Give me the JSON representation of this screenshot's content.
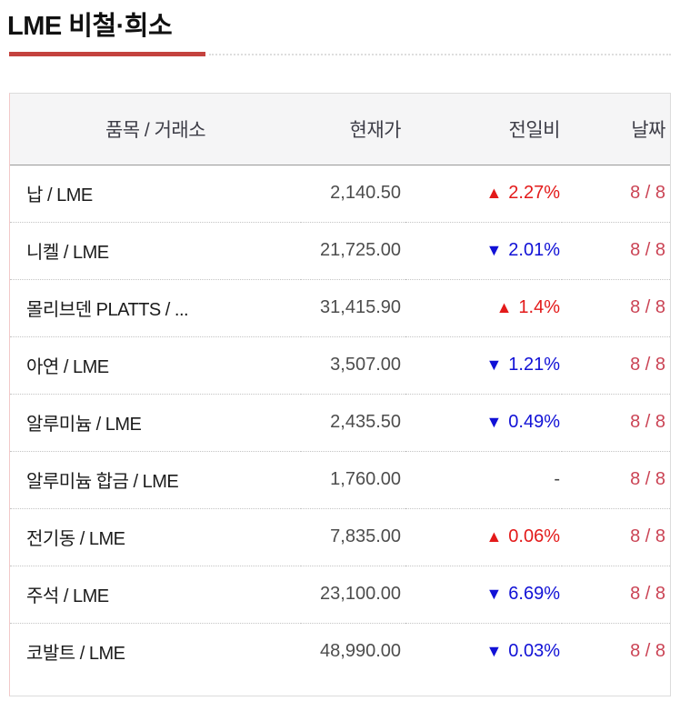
{
  "page": {
    "title": "LME 비철·희소"
  },
  "icons": {
    "up": "▲",
    "down": "▼"
  },
  "colors": {
    "title_underline": "#c4423e",
    "up_red": "#e31a1a",
    "down_blue": "#1111d6",
    "date_red": "#cb4455",
    "header_bg": "#f5f5f6",
    "header_text": "#3d3d47",
    "price_text": "#4d4d4d"
  },
  "table": {
    "columns": [
      {
        "key": "name",
        "label": "품목 / 거래소"
      },
      {
        "key": "price",
        "label": "현재가"
      },
      {
        "key": "change",
        "label": "전일비"
      },
      {
        "key": "date",
        "label": "날짜"
      }
    ],
    "rows": [
      {
        "name": "납 / LME",
        "price": "2,140.50",
        "direction": "up",
        "change": "2.27%",
        "date": "8 / 8"
      },
      {
        "name": "니켈 / LME",
        "price": "21,725.00",
        "direction": "down",
        "change": "2.01%",
        "date": "8 / 8"
      },
      {
        "name": "몰리브덴 PLATTS / ...",
        "price": "31,415.90",
        "direction": "up",
        "change": "1.4%",
        "date": "8 / 8"
      },
      {
        "name": "아연 / LME",
        "price": "3,507.00",
        "direction": "down",
        "change": "1.21%",
        "date": "8 / 8"
      },
      {
        "name": "알루미늄 / LME",
        "price": "2,435.50",
        "direction": "down",
        "change": "0.49%",
        "date": "8 / 8"
      },
      {
        "name": "알루미늄 합금 / LME",
        "price": "1,760.00",
        "direction": "flat",
        "change": "-",
        "date": "8 / 8"
      },
      {
        "name": "전기동 / LME",
        "price": "7,835.00",
        "direction": "up",
        "change": "0.06%",
        "date": "8 / 8"
      },
      {
        "name": "주석 / LME",
        "price": "23,100.00",
        "direction": "down",
        "change": "6.69%",
        "date": "8 / 8"
      },
      {
        "name": "코발트 / LME",
        "price": "48,990.00",
        "direction": "down",
        "change": "0.03%",
        "date": "8 / 8"
      }
    ]
  }
}
